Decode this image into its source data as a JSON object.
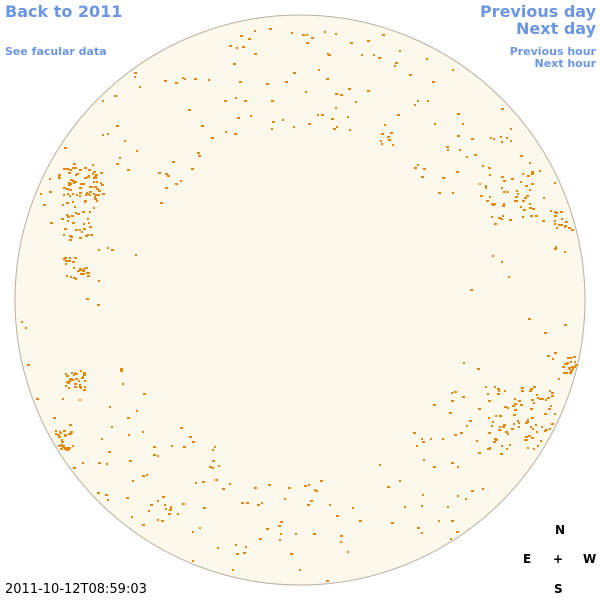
{
  "nav": {
    "back": "Back to 2011",
    "facular": "See facular data",
    "previous_day": "Previous day",
    "next_day": "Next day",
    "previous_hour": "Previous hour",
    "next_hour": "Next hour"
  },
  "timestamp": "2011-10-12T08:59:03",
  "compass": {
    "north": "N",
    "east": "E",
    "center": "+",
    "west": "W",
    "south": "S"
  }
}
